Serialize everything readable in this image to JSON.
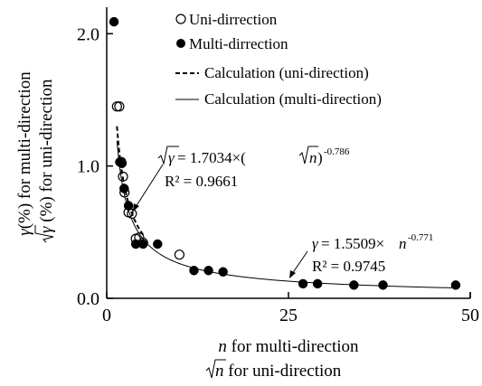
{
  "chart_data": {
    "type": "scatter",
    "title": "",
    "xlabel": {
      "line1_var": "n",
      "line1_rest": " for multi-direction",
      "line2_var": "n",
      "line2_rest": "  for uni-direction"
    },
    "ylabel": {
      "line1_var": "γ",
      "line1_rest": "(%) for multi-direction",
      "line2_var": "γ",
      "line2_rest": " (%) for uni-direction"
    },
    "xlim": [
      0,
      50
    ],
    "ylim": [
      0,
      2.2
    ],
    "xticks": [
      0,
      25,
      50
    ],
    "yticks": [
      0.0,
      1.0,
      2.0
    ],
    "xtick_labels": [
      "0",
      "25",
      "50"
    ],
    "ytick_labels": [
      "0.0",
      "1.0",
      "2.0"
    ],
    "grid": false,
    "legend_position": "top-right",
    "legend": [
      {
        "label": "Uni-dirrection",
        "style": "open-circle"
      },
      {
        "label": "Multi-dirrection",
        "style": "filled-circle"
      },
      {
        "label": "Calculation (uni-direction)",
        "style": "dashed-line"
      },
      {
        "label": "Calculation (multi-direction)",
        "style": "solid-line"
      }
    ],
    "series": [
      {
        "name": "Uni-dirrection",
        "marker": "open-circle",
        "points": [
          [
            1.41,
            1.45
          ],
          [
            1.73,
            1.45
          ],
          [
            2.0,
            1.03
          ],
          [
            2.24,
            0.92
          ],
          [
            2.45,
            0.8
          ],
          [
            3.0,
            0.65
          ],
          [
            3.46,
            0.64
          ],
          [
            4.0,
            0.45
          ],
          [
            4.47,
            0.46
          ],
          [
            5.0,
            0.42
          ],
          [
            10.0,
            0.33
          ]
        ]
      },
      {
        "name": "Multi-dirrection",
        "marker": "filled-circle",
        "points": [
          [
            1,
            2.09
          ],
          [
            1.8,
            1.03
          ],
          [
            2.1,
            1.02
          ],
          [
            2.4,
            0.83
          ],
          [
            3,
            0.7
          ],
          [
            4,
            0.41
          ],
          [
            5,
            0.41
          ],
          [
            7,
            0.41
          ],
          [
            12,
            0.21
          ],
          [
            14,
            0.21
          ],
          [
            16,
            0.2
          ],
          [
            27,
            0.11
          ],
          [
            29,
            0.11
          ],
          [
            34,
            0.1
          ],
          [
            38,
            0.1
          ],
          [
            48,
            0.1
          ]
        ]
      },
      {
        "name": "Calculation (uni-direction)",
        "style": "dashed-line",
        "function": {
          "a": 1.7034,
          "b": -0.786
        },
        "x_range": [
          1.41,
          5.0
        ]
      },
      {
        "name": "Calculation (multi-direction)",
        "style": "solid-line",
        "function": {
          "a": 1.5509,
          "b": -0.771
        },
        "x_range": [
          1.41,
          48
        ]
      }
    ],
    "annotations": {
      "uni": {
        "eq_lhs_var": "γ",
        "eq_mid": " = 1.7034×(",
        "eq_inner_var": "n",
        "eq_close": ")",
        "eq_exp": "-0.786",
        "r2": "R² = 0.9661"
      },
      "multi": {
        "eq_lhs_var": "γ",
        "eq_mid": " = 1.5509×",
        "eq_var": "n",
        "eq_exp": "-0.771",
        "r2": "R² = 0.9745"
      }
    }
  }
}
